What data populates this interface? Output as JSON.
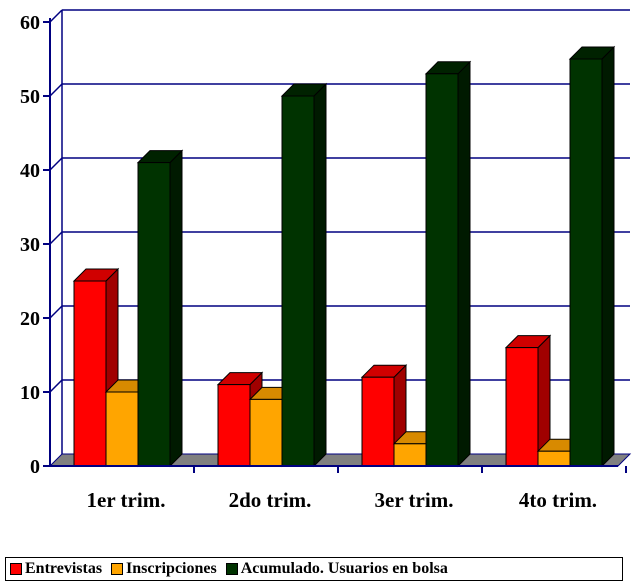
{
  "chart_data": {
    "type": "bar",
    "title": "",
    "xlabel": "",
    "ylabel": "",
    "categories": [
      "1er trim.",
      "2do trim.",
      "3er trim.",
      "4to trim."
    ],
    "ylim": [
      0,
      60
    ],
    "yticks": [
      "0",
      "10",
      "20",
      "30",
      "40",
      "50",
      "60"
    ],
    "grid": true,
    "legend_position": "bottom",
    "series": [
      {
        "name": "Entrevistas",
        "values": [
          25,
          11,
          12,
          16
        ],
        "color": "#ff0000",
        "side": "#a00000",
        "top": "#d00000"
      },
      {
        "name": "Inscripciones",
        "values": [
          10,
          9,
          3,
          2
        ],
        "color": "#ffa500",
        "side": "#a86a00",
        "top": "#d88a00"
      },
      {
        "name": "Acumulado. Usuarios en bolsa",
        "values": [
          41,
          50,
          53,
          55
        ],
        "color": "#003300",
        "side": "#001a00",
        "top": "#002200"
      }
    ]
  }
}
